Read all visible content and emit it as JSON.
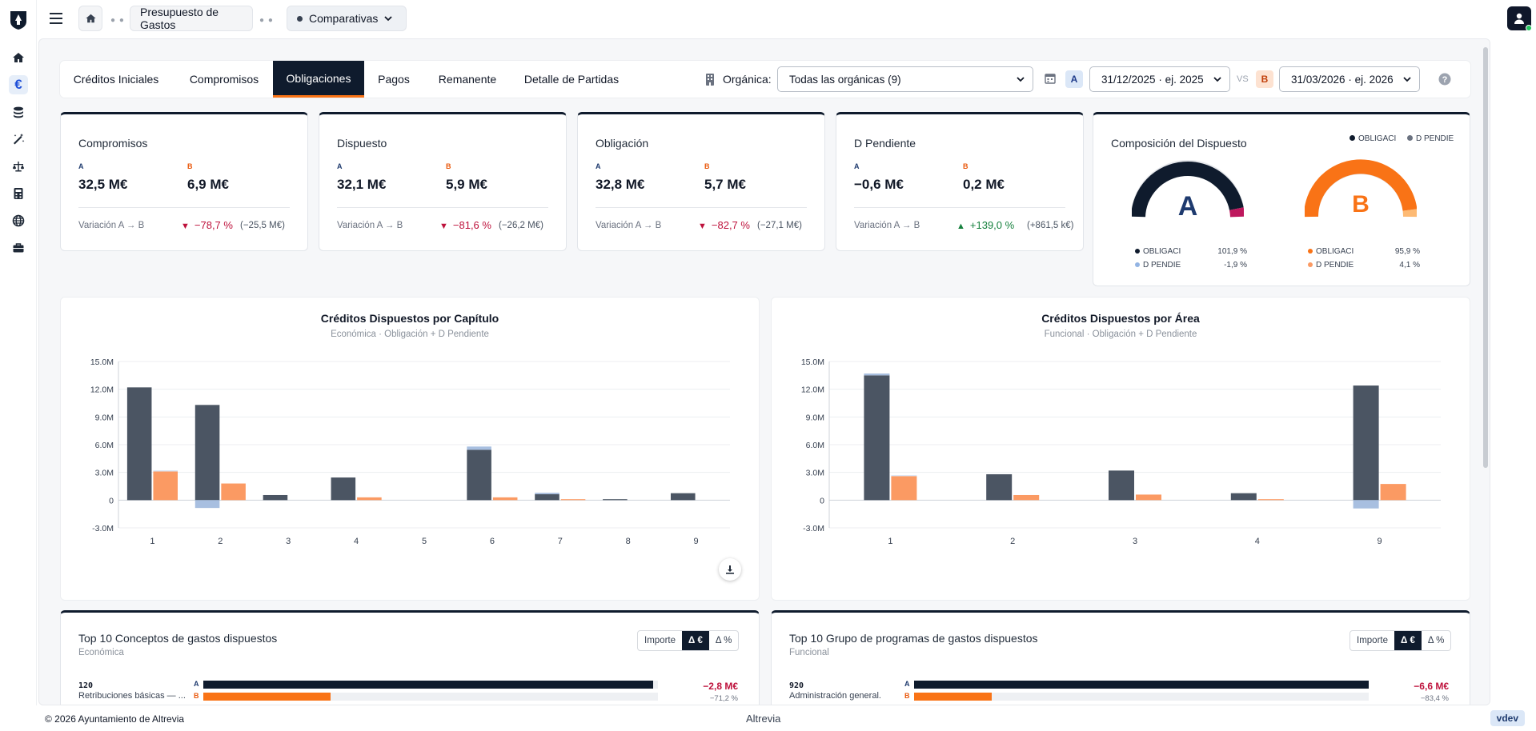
{
  "breadcrumb": {
    "home_icon": "home-icon",
    "section": "Presupuesto de Gastos",
    "current": "Comparativas"
  },
  "rail_icons": [
    "home-icon",
    "euro-icon",
    "coins-icon",
    "magic-wand-icon",
    "scale-icon",
    "calculator-icon",
    "globe-icon",
    "briefcase-icon"
  ],
  "tabs": [
    "Créditos Iniciales",
    "Compromisos",
    "Obligaciones",
    "Pagos",
    "Remanente",
    "Detalle de Partidas"
  ],
  "active_tab": "Obligaciones",
  "filters": {
    "organica_label": "Orgánica:",
    "organica_value": "Todas las orgánicas (9)",
    "badge_a": "A",
    "date_a": "31/12/2025 · ej. 2025",
    "vs": "VS",
    "badge_b": "B",
    "date_b": "31/03/2026 · ej. 2026"
  },
  "kpis": [
    {
      "title": "Compromisos",
      "a_label": "A",
      "a": "32,5 M€",
      "b_label": "B",
      "b": "6,9 M€",
      "var_label": "Variación A → B",
      "arrow": "▼",
      "delta": "−78,7 %",
      "abs": "(−25,5 M€)",
      "trend": "down"
    },
    {
      "title": "Dispuesto",
      "a_label": "A",
      "a": "32,1 M€",
      "b_label": "B",
      "b": "5,9 M€",
      "var_label": "Variación A → B",
      "arrow": "▼",
      "delta": "−81,6 %",
      "abs": "(−26,2 M€)",
      "trend": "down"
    },
    {
      "title": "Obligación",
      "a_label": "A",
      "a": "32,8 M€",
      "b_label": "B",
      "b": "5,7 M€",
      "var_label": "Variación A → B",
      "arrow": "▼",
      "delta": "−82,7 %",
      "abs": "(−27,1 M€)",
      "trend": "down"
    },
    {
      "title": "D Pendiente",
      "a_label": "A",
      "a": "−0,6 M€",
      "b_label": "B",
      "b": "0,2 M€",
      "var_label": "Variación A → B",
      "arrow": "▲",
      "delta": "+139,0 %",
      "abs": "(+861,5 k€)",
      "trend": "up"
    }
  ],
  "composition": {
    "title": "Composición del Dispuesto",
    "legend": [
      "OBLIGACI",
      "D PENDIE"
    ],
    "gauge_a": {
      "letter": "A",
      "rows": [
        {
          "label": "OBLIGACI",
          "value": "101,9 %"
        },
        {
          "label": "D PENDIE",
          "value": "-1,9 %"
        }
      ],
      "fraction": 0.98
    },
    "gauge_b": {
      "letter": "B",
      "rows": [
        {
          "label": "OBLIGACI",
          "value": "95,9 %"
        },
        {
          "label": "D PENDIE",
          "value": "4,1 %"
        }
      ],
      "fraction": 0.959
    }
  },
  "colors": {
    "navy": "#0f1b2d",
    "slate": "#4b5563",
    "orange": "#f97316",
    "light_orange": "#fb9a63",
    "light_blue": "#a8bfe0",
    "red": "#be123c",
    "green": "#15803d"
  },
  "chart_data": [
    {
      "type": "bar",
      "title": "Créditos Dispuestos por Capítulo",
      "subtitle": "Económica · Obligación + D Pendiente",
      "categories": [
        "1",
        "2",
        "3",
        "4",
        "5",
        "6",
        "7",
        "8",
        "9"
      ],
      "ylim": [
        -3000000,
        15000000
      ],
      "yticks": [
        "15.0M",
        "12.0M",
        "9.0M",
        "6.0M",
        "3.0M",
        "0",
        "-3.0M"
      ],
      "ytick_values": [
        15000000,
        12000000,
        9000000,
        6000000,
        3000000,
        0,
        -3000000
      ],
      "series": [
        {
          "values": [
            12200000,
            10300000,
            550000,
            2450000,
            0,
            5450000,
            650000,
            100000,
            750000
          ]
        },
        {
          "values": [
            0,
            -850000,
            0,
            0,
            0,
            350000,
            150000,
            0,
            0
          ]
        },
        {
          "values": [
            3100000,
            1800000,
            0,
            300000,
            0,
            300000,
            100000,
            0,
            0
          ]
        },
        {
          "values": [
            120000,
            0,
            0,
            0,
            0,
            0,
            0,
            0,
            0
          ]
        }
      ],
      "grid": true
    },
    {
      "type": "bar",
      "title": "Créditos Dispuestos por Área",
      "subtitle": "Funcional · Obligación + D Pendiente",
      "categories": [
        "1",
        "2",
        "3",
        "4",
        "9"
      ],
      "ylim": [
        -3000000,
        15000000
      ],
      "yticks": [
        "15.0M",
        "12.0M",
        "9.0M",
        "6.0M",
        "3.0M",
        "0",
        "-3.0M"
      ],
      "ytick_values": [
        15000000,
        12000000,
        9000000,
        6000000,
        3000000,
        0,
        -3000000
      ],
      "series": [
        {
          "values": [
            13500000,
            2800000,
            3200000,
            750000,
            12400000
          ]
        },
        {
          "values": [
            200000,
            0,
            0,
            0,
            -900000
          ]
        },
        {
          "values": [
            2600000,
            550000,
            600000,
            100000,
            1750000
          ]
        },
        {
          "values": [
            100000,
            0,
            0,
            0,
            0
          ]
        }
      ],
      "grid": true
    }
  ],
  "top10": [
    {
      "title": "Top 10 Conceptos de gastos dispuestos",
      "subtitle": "Económica",
      "seg": [
        "Importe",
        "Δ €",
        "Δ %"
      ],
      "row_code": "120",
      "row_label": "Retribuciones básicas — ...",
      "delta": "−2,8 M€",
      "pct": "−71,2 %",
      "a_fraction": 0.99,
      "b_fraction": 0.28
    },
    {
      "title": "Top 10 Grupo de programas de gastos dispuestos",
      "subtitle": "Funcional",
      "seg": [
        "Importe",
        "Δ €",
        "Δ %"
      ],
      "row_code": "920",
      "row_label": "Administración general.",
      "delta": "−6,6 M€",
      "pct": "−83,4 %",
      "a_fraction": 1.0,
      "b_fraction": 0.17
    }
  ],
  "footer": {
    "copyright": "© 2026 Ayuntamiento de Altrevia",
    "brand": "Altrevia",
    "version": "vdev"
  }
}
